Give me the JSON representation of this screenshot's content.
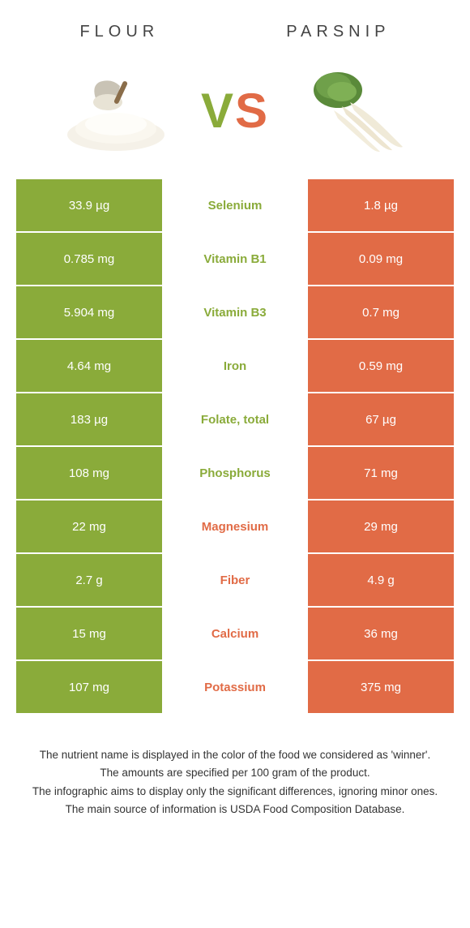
{
  "header": {
    "left": "FLOUR",
    "right": "PARSNIP"
  },
  "vs": {
    "v": "V",
    "s": "S"
  },
  "colors": {
    "left": "#8aab3a",
    "right": "#e16b46"
  },
  "rows": [
    {
      "left": "33.9 µg",
      "name": "Selenium",
      "right": "1.8 µg",
      "winner": "left"
    },
    {
      "left": "0.785 mg",
      "name": "Vitamin B1",
      "right": "0.09 mg",
      "winner": "left"
    },
    {
      "left": "5.904 mg",
      "name": "Vitamin B3",
      "right": "0.7 mg",
      "winner": "left"
    },
    {
      "left": "4.64 mg",
      "name": "Iron",
      "right": "0.59 mg",
      "winner": "left"
    },
    {
      "left": "183 µg",
      "name": "Folate, total",
      "right": "67 µg",
      "winner": "left"
    },
    {
      "left": "108 mg",
      "name": "Phosphorus",
      "right": "71 mg",
      "winner": "left"
    },
    {
      "left": "22 mg",
      "name": "Magnesium",
      "right": "29 mg",
      "winner": "right"
    },
    {
      "left": "2.7 g",
      "name": "Fiber",
      "right": "4.9 g",
      "winner": "right"
    },
    {
      "left": "15 mg",
      "name": "Calcium",
      "right": "36 mg",
      "winner": "right"
    },
    {
      "left": "107 mg",
      "name": "Potassium",
      "right": "375 mg",
      "winner": "right"
    }
  ],
  "footer": {
    "line1": "The nutrient name is displayed in the color of the food we considered as 'winner'.",
    "line2": "The amounts are specified per 100 gram of the product.",
    "line3": "The infographic aims to display only the significant differences, ignoring minor ones.",
    "line4": "The main source of information is USDA Food Composition Database."
  }
}
